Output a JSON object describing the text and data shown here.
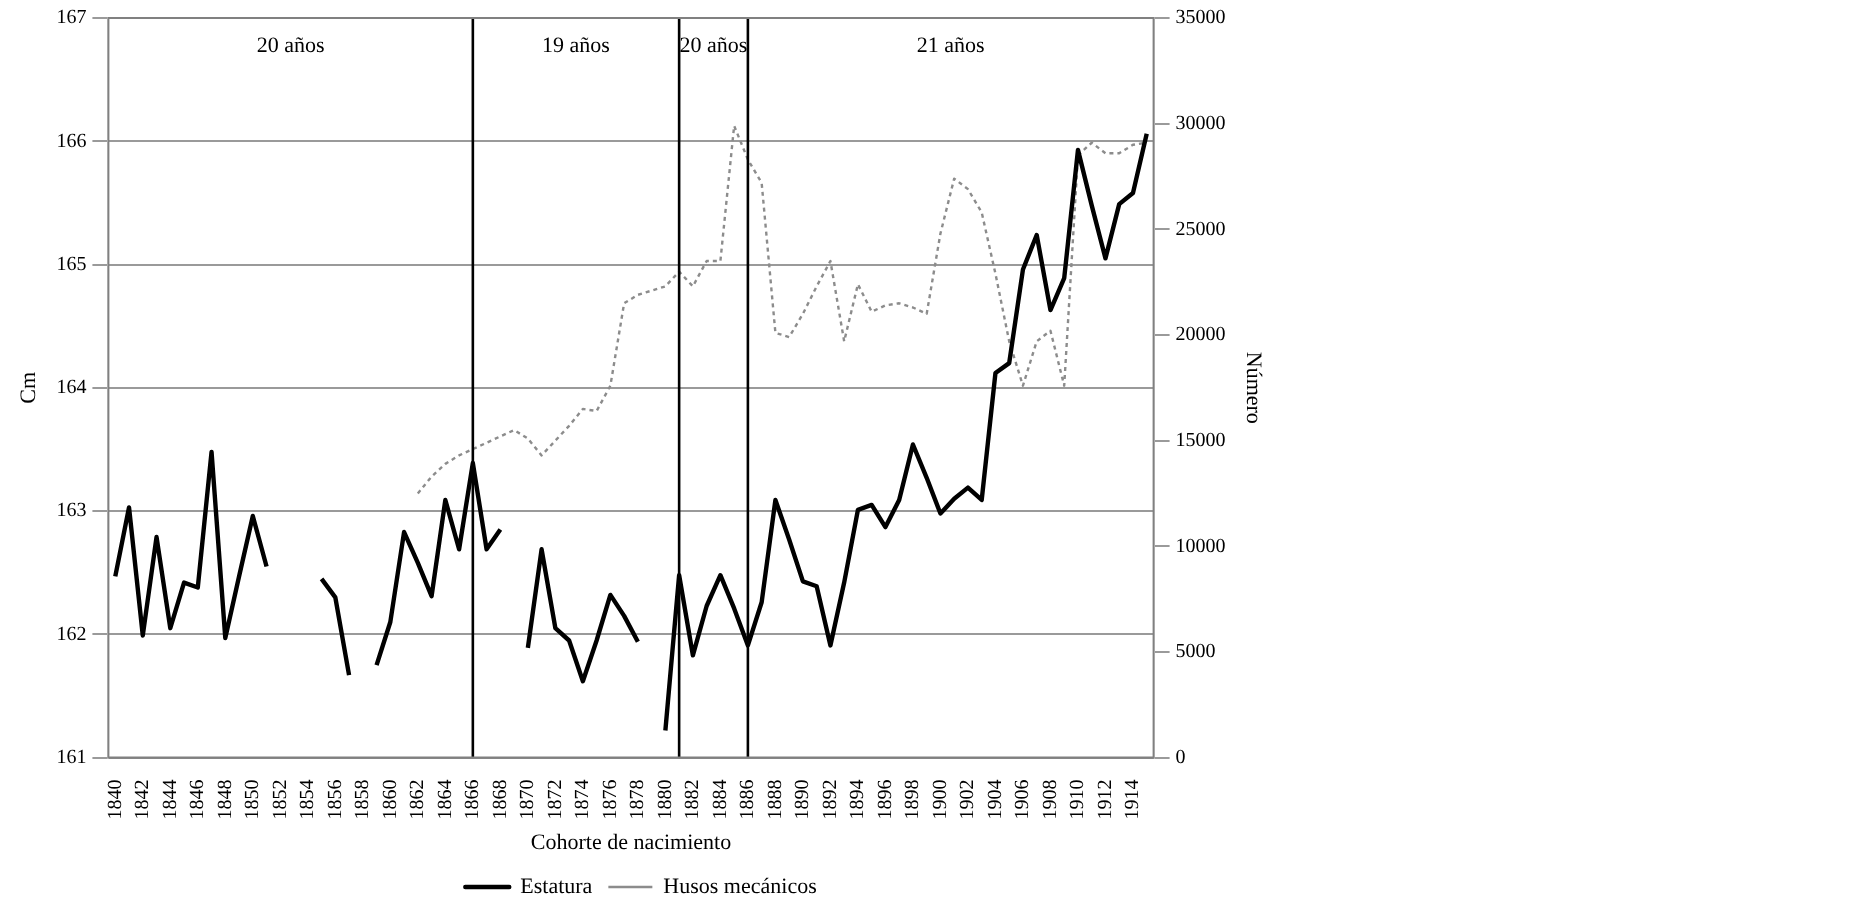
{
  "chart_data": {
    "type": "line",
    "xlabel": "Cohorte de nacimiento",
    "ylabel": "Cm",
    "y2label": "Número",
    "x": [
      1840,
      1841,
      1842,
      1843,
      1844,
      1845,
      1846,
      1847,
      1848,
      1849,
      1850,
      1851,
      1852,
      1853,
      1854,
      1855,
      1856,
      1857,
      1858,
      1859,
      1860,
      1861,
      1862,
      1863,
      1864,
      1865,
      1866,
      1867,
      1868,
      1869,
      1870,
      1871,
      1872,
      1873,
      1874,
      1875,
      1876,
      1877,
      1878,
      1879,
      1880,
      1881,
      1882,
      1883,
      1884,
      1885,
      1886,
      1887,
      1888,
      1889,
      1890,
      1891,
      1892,
      1893,
      1894,
      1895,
      1896,
      1897,
      1898,
      1899,
      1900,
      1901,
      1902,
      1903,
      1904,
      1905,
      1906,
      1907,
      1908,
      1909,
      1910,
      1911,
      1912,
      1913,
      1914,
      1915
    ],
    "series": [
      {
        "name": "Estatura",
        "color": "#000000",
        "line_style": "solid",
        "values": [
          162.47,
          163.03,
          161.99,
          162.79,
          162.05,
          162.42,
          162.38,
          163.48,
          161.97,
          162.47,
          162.96,
          162.55,
          null,
          null,
          null,
          162.45,
          162.3,
          161.67,
          null,
          161.75,
          162.1,
          162.83,
          162.58,
          162.31,
          163.09,
          162.69,
          163.39,
          162.69,
          162.85,
          null,
          161.89,
          162.69,
          162.05,
          161.95,
          161.62,
          161.95,
          162.32,
          162.15,
          161.94,
          null,
          161.22,
          162.48,
          161.83,
          162.23,
          162.48,
          162.21,
          161.91,
          162.26,
          163.09,
          162.77,
          162.43,
          162.39,
          161.91,
          162.42,
          163.01,
          163.05,
          162.87,
          163.09,
          163.54,
          163.27,
          162.98,
          163.1,
          163.19,
          163.09,
          164.12,
          164.2,
          164.96,
          165.24,
          164.63,
          164.89,
          165.93,
          165.48,
          165.05,
          165.49,
          165.58,
          166.06
        ]
      },
      {
        "name": "Husos mecánicos",
        "color": "#8c8c8c",
        "line_style": "dotted",
        "axis": "y2",
        "values": [
          null,
          null,
          null,
          null,
          null,
          null,
          null,
          null,
          null,
          null,
          null,
          null,
          null,
          null,
          null,
          null,
          null,
          null,
          null,
          null,
          null,
          null,
          12500,
          13300,
          13900,
          14300,
          14600,
          14900,
          15200,
          15500,
          15100,
          14300,
          15000,
          15700,
          16500,
          16400,
          17600,
          21500,
          21900,
          22100,
          22300,
          23000,
          22300,
          23500,
          23500,
          29900,
          28300,
          27200,
          20100,
          19900,
          21000,
          22300,
          23500,
          19700,
          22400,
          21100,
          21400,
          21500,
          21300,
          21000,
          24800,
          27400,
          26900,
          25800,
          22900,
          19700,
          17600,
          19700,
          20200,
          17600,
          28500,
          29100,
          28600,
          28600,
          29000,
          29100
        ]
      }
    ],
    "xlim": [
      1839.5,
      1915.5
    ],
    "xticks": [
      1840,
      1842,
      1844,
      1846,
      1848,
      1850,
      1852,
      1854,
      1856,
      1858,
      1860,
      1862,
      1864,
      1866,
      1868,
      1870,
      1872,
      1874,
      1876,
      1878,
      1880,
      1882,
      1884,
      1886,
      1888,
      1890,
      1892,
      1894,
      1896,
      1898,
      1900,
      1902,
      1904,
      1906,
      1908,
      1910,
      1912,
      1914
    ],
    "ylim": [
      161,
      167
    ],
    "yticks": [
      161,
      162,
      163,
      164,
      165,
      166,
      167
    ],
    "y2lim": [
      0,
      35000
    ],
    "y2ticks": [
      0,
      5000,
      10000,
      15000,
      20000,
      25000,
      30000,
      35000
    ],
    "ref_lines": [
      {
        "axis": "x",
        "value": 1866,
        "color": "#000000"
      },
      {
        "axis": "x",
        "value": 1881,
        "color": "#000000"
      },
      {
        "axis": "x",
        "value": 1886,
        "color": "#000000"
      }
    ],
    "annotations": [
      "20 años",
      "19 años",
      "20 años",
      "21 años"
    ],
    "grid": "y",
    "legend": "bottom",
    "marker": "none"
  }
}
